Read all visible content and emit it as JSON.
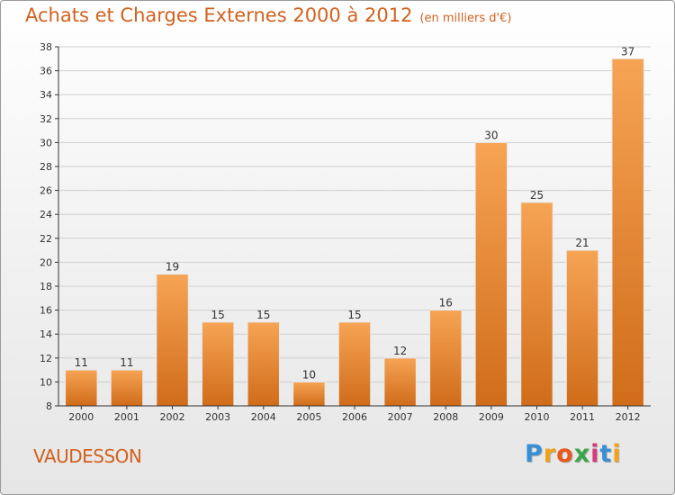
{
  "title": "Achats et Charges Externes 2000 à 2012",
  "unit_note": "(en milliers d'€)",
  "commune": "VAUDESSON",
  "logo": {
    "text": "Proxiti",
    "letters": [
      "P",
      "r",
      "o",
      "x",
      "i",
      "t",
      "i"
    ],
    "colors": [
      "#3a8fd4",
      "#f0a21a",
      "#e8581c",
      "#3aa54a",
      "#d83a7a",
      "#3a8fd4",
      "#f0a21a"
    ]
  },
  "colors": {
    "title": "#d2611e",
    "bar_light": "#f6a454",
    "bar_dark": "#d06c1a",
    "grid": "#cfcfcf",
    "axis": "#333333"
  },
  "chart_data": {
    "type": "bar",
    "title": "Achats et Charges Externes 2000 à 2012",
    "subtitle": "(en milliers d'€)",
    "categories": [
      "2000",
      "2001",
      "2002",
      "2003",
      "2004",
      "2005",
      "2006",
      "2007",
      "2008",
      "2009",
      "2010",
      "2011",
      "2012"
    ],
    "values": [
      11,
      11,
      19,
      15,
      15,
      10,
      15,
      12,
      16,
      30,
      25,
      21,
      37
    ],
    "ylim": [
      8,
      38
    ],
    "yticks": [
      8,
      10,
      12,
      14,
      16,
      18,
      20,
      22,
      24,
      26,
      28,
      30,
      32,
      34,
      36,
      38
    ],
    "xlabel": "",
    "ylabel": "",
    "grid": true,
    "data_labels": true
  }
}
